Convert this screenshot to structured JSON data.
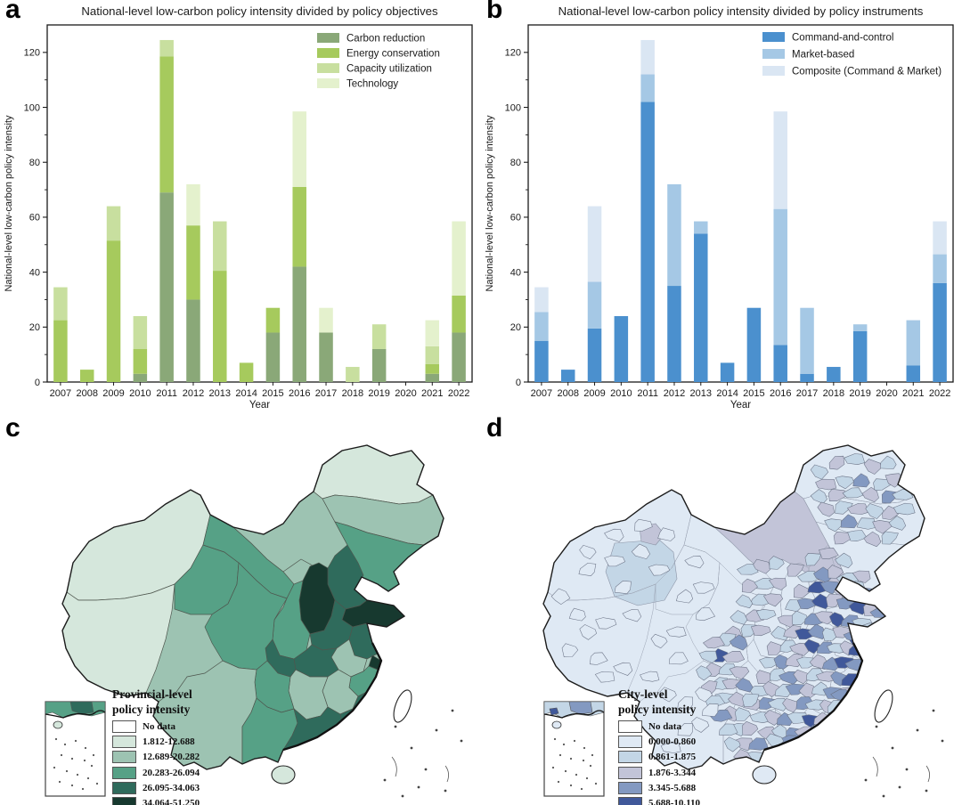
{
  "figure": {
    "background": "#ffffff",
    "panel_labels": [
      "a",
      "b",
      "c",
      "d"
    ]
  },
  "chart_data": [
    {
      "type": "bar",
      "stacked": true,
      "title": "National-level low-carbon policy intensity divided by policy objectives",
      "xlabel": "Year",
      "ylabel": "National-level low-carbon policy intensity",
      "ylim": [
        0,
        130
      ],
      "yticks": [
        0,
        20,
        40,
        60,
        80,
        100,
        120
      ],
      "grid": false,
      "legend_position": "top-right-inside",
      "categories": [
        "2007",
        "2008",
        "2009",
        "2010",
        "2011",
        "2012",
        "2013",
        "2014",
        "2015",
        "2016",
        "2017",
        "2018",
        "2019",
        "2020",
        "2021",
        "2022"
      ],
      "series": [
        {
          "name": "Carbon reduction",
          "color": "#8aa878",
          "values": [
            0,
            0,
            0,
            3,
            69,
            30,
            0,
            0,
            18,
            42,
            18,
            0,
            12,
            0,
            3,
            18
          ]
        },
        {
          "name": "Energy conservation",
          "color": "#a6ca5d",
          "values": [
            22.5,
            4.5,
            51.5,
            9,
            49.5,
            27,
            40.5,
            7,
            9,
            29,
            0,
            0,
            0,
            0,
            3.5,
            13.5
          ]
        },
        {
          "name": "Capacity utilization",
          "color": "#c8df9f",
          "values": [
            12,
            0,
            12.5,
            12,
            6,
            0,
            18,
            0,
            0,
            0,
            0,
            5.5,
            9,
            0,
            6.5,
            0
          ]
        },
        {
          "name": "Technology",
          "color": "#e4f1cd",
          "values": [
            0,
            0,
            0,
            0,
            0,
            15,
            0,
            0,
            0,
            27.5,
            9,
            0,
            0,
            0,
            9.5,
            27
          ]
        }
      ]
    },
    {
      "type": "bar",
      "stacked": true,
      "title": "National-level low-carbon policy intensity divided by policy instruments",
      "xlabel": "Year",
      "ylabel": "National-level low-carbon policy intensity",
      "ylim": [
        0,
        130
      ],
      "yticks": [
        0,
        20,
        40,
        60,
        80,
        100,
        120
      ],
      "grid": false,
      "legend_position": "top-right-inside",
      "categories": [
        "2007",
        "2008",
        "2009",
        "2010",
        "2011",
        "2012",
        "2013",
        "2014",
        "2015",
        "2016",
        "2017",
        "2018",
        "2019",
        "2020",
        "2021",
        "2022"
      ],
      "series": [
        {
          "name": "Command-and-control",
          "color": "#4b90ce",
          "values": [
            15,
            4.5,
            19.5,
            24,
            102,
            35,
            54,
            7,
            27,
            13.5,
            3,
            5.5,
            18.5,
            0,
            6,
            36
          ]
        },
        {
          "name": "Market-based",
          "color": "#a5c8e5",
          "values": [
            10.5,
            0,
            17,
            0,
            10,
            37,
            4.5,
            0,
            0,
            49.5,
            24,
            0,
            2.5,
            0,
            16.5,
            10.5
          ]
        },
        {
          "name": "Composite (Command & Market)",
          "color": "#dae6f3",
          "values": [
            9,
            0,
            27.5,
            0,
            12.5,
            0,
            0,
            0,
            0,
            35.5,
            0,
            0,
            0,
            0,
            0,
            12
          ]
        }
      ]
    }
  ],
  "maps": {
    "provincial": {
      "legend_title_line1": "Provincial-level",
      "legend_title_line2": "policy intensity",
      "classes": [
        {
          "label": "No data",
          "color": "#ffffff"
        },
        {
          "label": "1.812-12.688",
          "color": "#d5e7dc"
        },
        {
          "label": "12.689-20.282",
          "color": "#9dc3b2"
        },
        {
          "label": "20.283-26.094",
          "color": "#56a186"
        },
        {
          "label": "26.095-34.063",
          "color": "#2f6b5c"
        },
        {
          "label": "34.064-51.250",
          "color": "#17392f"
        }
      ]
    },
    "city": {
      "legend_title_line1": "City-level",
      "legend_title_line2": "policy intensity",
      "classes": [
        {
          "label": "No data",
          "color": "#ffffff"
        },
        {
          "label": "0.000-0.860",
          "color": "#dfe9f4"
        },
        {
          "label": "0.861-1.875",
          "color": "#c3d6e6"
        },
        {
          "label": "1.876-3.344",
          "color": "#c2c4d8"
        },
        {
          "label": "3.345-5.688",
          "color": "#8399c1"
        },
        {
          "label": "5.688-10.110",
          "color": "#40589a"
        }
      ]
    }
  }
}
